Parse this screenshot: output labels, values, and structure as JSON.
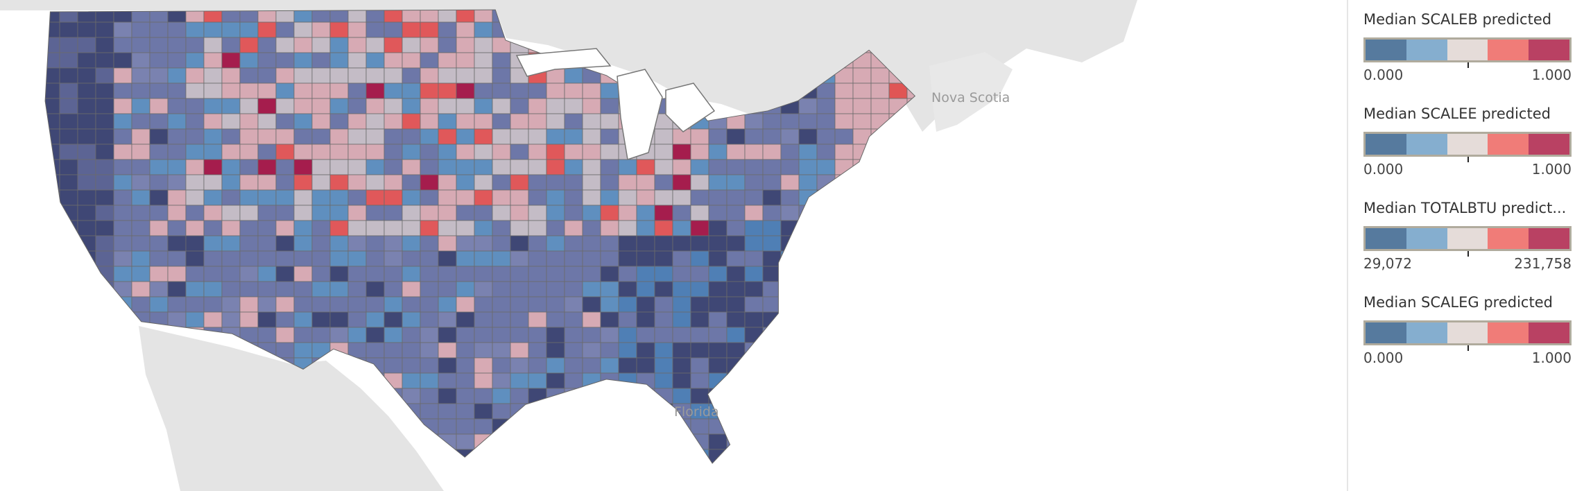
{
  "map": {
    "place_labels": [
      "Nova Scotia",
      "Florida"
    ],
    "colors": {
      "water": "#ffffff",
      "land": "#e4e4e4",
      "county_border": "#6b6b6b"
    }
  },
  "legends": [
    {
      "title": "Median SCALEB predicted",
      "min_label": "0.000",
      "max_label": "1.000"
    },
    {
      "title": "Median SCALEE predicted",
      "min_label": "0.000",
      "max_label": "1.000"
    },
    {
      "title": "Median TOTALBTU predict...",
      "min_label": "29,072",
      "max_label": "231,758"
    },
    {
      "title": "Median SCALEG predicted",
      "min_label": "0.000",
      "max_label": "1.000"
    }
  ],
  "palette": [
    "#567a9e",
    "#85aecf",
    "#e5dcd9",
    "#f07c78",
    "#b94163"
  ]
}
